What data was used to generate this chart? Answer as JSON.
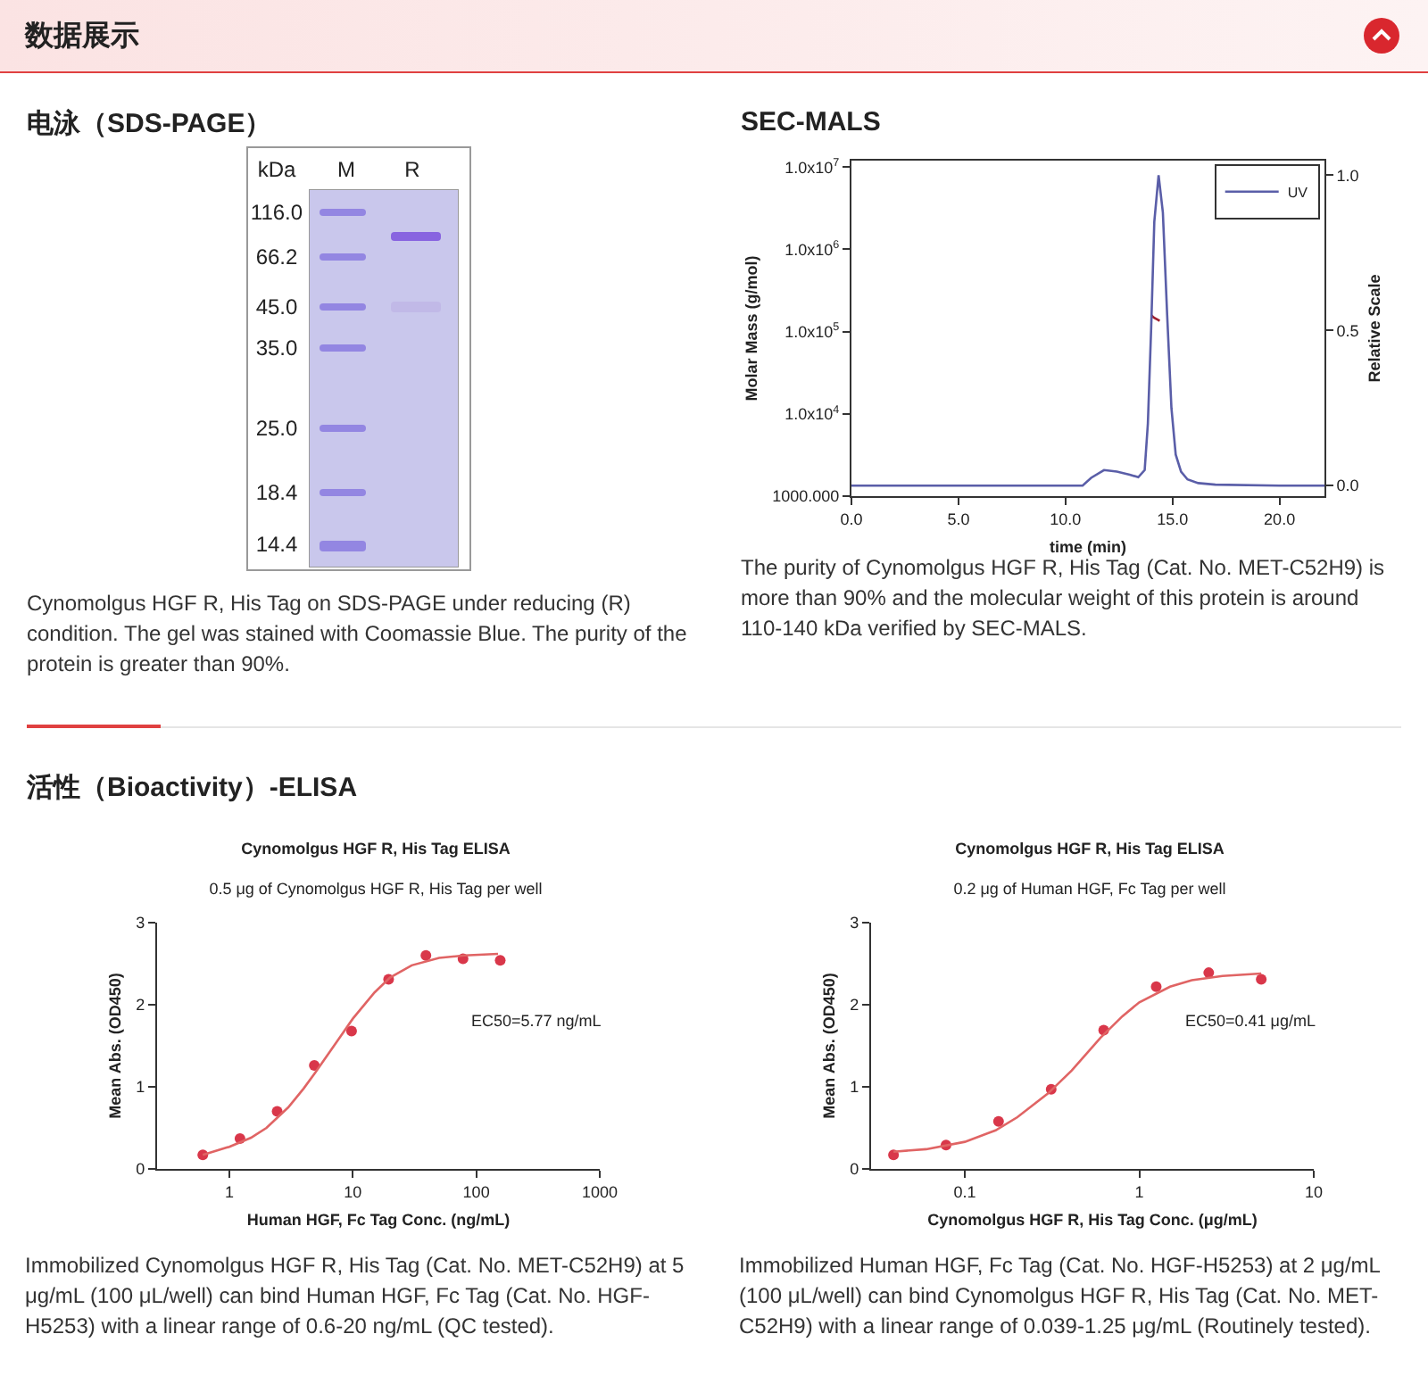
{
  "chart_data": [
    {
      "type": "other",
      "title": "数据展示"
    },
    {
      "type": "other",
      "title": "电泳（SDS-PAGE）",
      "ylabel": "kDa",
      "categories": [
        "M",
        "R"
      ],
      "annotations": [
        "116.0",
        "66.2",
        "45.0",
        "35.0",
        "25.0",
        "18.4",
        "14.4",
        "Cynomolgus HGF R, His Tag on SDS-PAGE under reducing (R) condition. The gel was stained with Coomassie Blue. The purity of the protein is greater than 90%."
      ]
    },
    {
      "type": "line",
      "title": "SEC-MALS",
      "xlabel": "time (min)",
      "ylabel": "Molar Mass (g/mol)",
      "y2label": "Relative Scale",
      "xlim": [
        0,
        22.1
      ],
      "xticks": [
        {
          "value": 0,
          "label": "0.0"
        },
        {
          "value": 5,
          "label": "5.0"
        },
        {
          "value": 10,
          "label": "10.0"
        },
        {
          "value": 15,
          "label": "15.0"
        },
        {
          "value": 20,
          "label": "20.0"
        }
      ],
      "ylim": [
        1000,
        12000000
      ],
      "yticks": [
        {
          "value": 1000,
          "label": "1000.000"
        },
        {
          "value": 10000,
          "label": "1.0x10$^{4}$"
        },
        {
          "value": 100000,
          "label": "1.0x10$^{5}$"
        },
        {
          "value": 1000000,
          "label": "1.0x10$^{6}$"
        },
        {
          "value": 10000000,
          "label": "1.0x10$^{7}$"
        }
      ],
      "y2lim": [
        -0.034,
        1.047
      ],
      "y2ticks": [
        {
          "value": 0,
          "label": "0.0"
        },
        {
          "value": 0.5,
          "label": "0.5"
        },
        {
          "value": 1,
          "label": "1.0"
        }
      ],
      "log": "y",
      "grid": false,
      "legend": "top right",
      "series": [
        {
          "name": "UV",
          "color": "#5a5ea8",
          "axis": "y2",
          "x": [
            0,
            5,
            10,
            10.8,
            11.2,
            11.8,
            12.4,
            13.0,
            13.4,
            13.7,
            13.85,
            14.0,
            14.15,
            14.35,
            14.55,
            14.75,
            14.95,
            15.15,
            15.4,
            15.7,
            16.2,
            17,
            20,
            22.1
          ],
          "values": [
            0,
            0,
            0,
            0,
            0.025,
            0.05,
            0.045,
            0.035,
            0.027,
            0.05,
            0.2,
            0.5,
            0.85,
            1.0,
            0.88,
            0.55,
            0.25,
            0.1,
            0.045,
            0.02,
            0.008,
            0.003,
            0,
            0
          ]
        },
        {
          "color": "#a0202e",
          "x": [
            14.0,
            14.1,
            14.2,
            14.3,
            14.4
          ],
          "values": [
            160000,
            150000,
            145000,
            140000,
            135000
          ]
        }
      ],
      "annotations": [
        "The purity of Cynomolgus HGF R, His Tag (Cat. No. MET-C52H9) is more than 90% and the molecular weight of this protein is around 110-140 kDa verified by SEC-MALS."
      ]
    },
    {
      "type": "other",
      "title": "活性（Bioactivity）-ELISA"
    },
    {
      "type": "scatter",
      "title": "Cynomolgus HGF R, His Tag ELISA",
      "subtitle": "0.5 μg of Cynomolgus HGF R, His Tag per well",
      "xlabel": "Human HGF, Fc Tag Conc. (ng/mL)",
      "ylabel": "Mean Abs. (OD450)",
      "log": "x",
      "grid": false,
      "xlim": [
        0.26,
        1000
      ],
      "xticks": [
        1,
        10,
        100,
        1000
      ],
      "ylim": [
        0,
        3
      ],
      "yticks": [
        0,
        1,
        2,
        3
      ],
      "series": [
        {
          "type": "scatter",
          "marker": "circle",
          "color": "#d9374a",
          "x": [
            0.61,
            1.22,
            2.44,
            4.88,
            9.77,
            19.5,
            39.1,
            78.1,
            156.3
          ],
          "values": [
            0.17,
            0.37,
            0.7,
            1.26,
            1.68,
            2.31,
            2.6,
            2.56,
            2.54
          ]
        },
        {
          "type": "line",
          "marker": "none",
          "color": "#e06464",
          "x": [
            0.61,
            1,
            1.5,
            2,
            3,
            4,
            5,
            6,
            8,
            10,
            15,
            20,
            30,
            50,
            80,
            150
          ],
          "values": [
            0.17,
            0.27,
            0.38,
            0.5,
            0.75,
            0.98,
            1.18,
            1.35,
            1.62,
            1.83,
            2.15,
            2.33,
            2.48,
            2.57,
            2.6,
            2.62
          ]
        }
      ],
      "annotations": [
        "EC50=5.77 ng/mL",
        "Immobilized Cynomolgus HGF R, His Tag (Cat. No. MET-C52H9) at 5 μg/mL (100 μL/well) can bind Human HGF, Fc Tag (Cat. No. HGF-H5253) with a linear range of 0.6-20 ng/mL (QC tested)."
      ]
    },
    {
      "type": "scatter",
      "title": "Cynomolgus HGF R, His Tag ELISA",
      "subtitle": "0.2 μg of Human HGF, Fc Tag per well",
      "xlabel": "Cynomolgus HGF R, His Tag Conc. (μg/mL)",
      "ylabel": "Mean Abs. (OD450)",
      "log": "x",
      "grid": false,
      "xlim": [
        0.029,
        10
      ],
      "xticks": [
        0.1,
        1,
        10
      ],
      "ylim": [
        0,
        3
      ],
      "yticks": [
        0,
        1,
        2,
        3
      ],
      "series": [
        {
          "type": "scatter",
          "marker": "circle",
          "color": "#d9374a",
          "x": [
            0.039,
            0.078,
            0.156,
            0.3125,
            0.625,
            1.25,
            2.5,
            5
          ],
          "values": [
            0.17,
            0.29,
            0.58,
            0.97,
            1.69,
            2.22,
            2.39,
            2.31
          ]
        },
        {
          "type": "line",
          "marker": "none",
          "color": "#e06464",
          "x": [
            0.039,
            0.06,
            0.1,
            0.15,
            0.2,
            0.3,
            0.41,
            0.6,
            0.8,
            1,
            1.5,
            2,
            3,
            5
          ],
          "values": [
            0.21,
            0.24,
            0.33,
            0.47,
            0.63,
            0.92,
            1.2,
            1.6,
            1.86,
            2.03,
            2.22,
            2.3,
            2.35,
            2.38
          ]
        }
      ],
      "annotations": [
        "EC50=0.41 μg/mL",
        "Immobilized Human HGF, Fc Tag (Cat. No. HGF-H5253) at 2 μg/mL (100 μL/well) can bind Cynomolgus HGF R, His Tag (Cat. No. MET-C52H9) with a linear range of 0.039-1.25 μg/mL (Routinely tested)."
      ]
    }
  ]
}
